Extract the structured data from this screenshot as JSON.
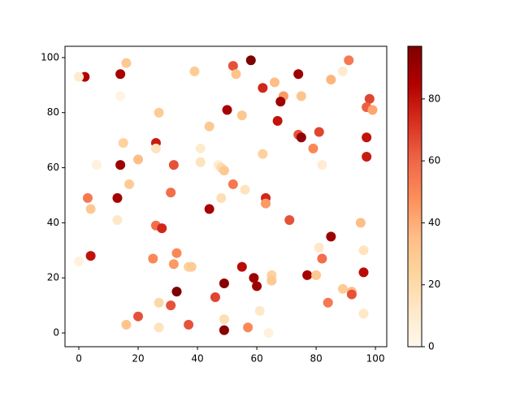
{
  "chart_data": {
    "type": "scatter",
    "colormap": "OrRd",
    "x": [
      2,
      0,
      14,
      16,
      14,
      39,
      52,
      53,
      58,
      62,
      66,
      69,
      68,
      74,
      75,
      85,
      89,
      91,
      98,
      97,
      99,
      50,
      55,
      27,
      44,
      67,
      74,
      75,
      81,
      79,
      97,
      97,
      26,
      26,
      15,
      20,
      6,
      14,
      32,
      41,
      41,
      47,
      48,
      49,
      62,
      82,
      17,
      52,
      56,
      31,
      48,
      63,
      63,
      3,
      13,
      4,
      44,
      13,
      26,
      28,
      71,
      95,
      85,
      4,
      25,
      33,
      32,
      37,
      38,
      0,
      55,
      59,
      60,
      49,
      33,
      65,
      65,
      77,
      80,
      81,
      82,
      96,
      96,
      89,
      92,
      92,
      84,
      96,
      46,
      27,
      31,
      20,
      16,
      27,
      37,
      49,
      49,
      57,
      61,
      64
    ],
    "y": [
      93,
      93,
      94,
      98,
      86,
      95,
      97,
      94,
      99,
      89,
      91,
      86,
      84,
      94,
      86,
      92,
      95,
      99,
      85,
      82,
      81,
      81,
      79,
      80,
      75,
      77,
      72,
      71,
      73,
      67,
      71,
      64,
      69,
      67,
      69,
      63,
      61,
      61,
      61,
      67,
      62,
      61,
      60,
      59,
      65,
      61,
      54,
      54,
      52,
      51,
      49,
      49,
      47,
      49,
      49,
      45,
      45,
      41,
      39,
      38,
      41,
      40,
      35,
      28,
      27,
      29,
      25,
      24,
      24,
      26,
      24,
      20,
      17,
      18,
      15,
      21,
      19,
      21,
      21,
      31,
      27,
      30,
      22,
      16,
      15,
      14,
      11,
      7,
      13,
      11,
      10,
      6,
      3,
      2,
      3,
      5,
      1,
      2,
      8,
      0
    ],
    "color_values": [
      85,
      10,
      88,
      30,
      3,
      28,
      65,
      32,
      97,
      75,
      35,
      45,
      90,
      90,
      32,
      38,
      10,
      55,
      68,
      62,
      42,
      88,
      30,
      28,
      30,
      80,
      65,
      92,
      68,
      50,
      80,
      78,
      78,
      15,
      25,
      35,
      5,
      90,
      65,
      10,
      15,
      8,
      20,
      30,
      25,
      8,
      28,
      55,
      15,
      58,
      18,
      75,
      45,
      55,
      88,
      30,
      88,
      12,
      58,
      75,
      65,
      35,
      90,
      80,
      50,
      50,
      45,
      25,
      28,
      5,
      82,
      90,
      90,
      95,
      97,
      25,
      30,
      88,
      30,
      12,
      58,
      15,
      82,
      28,
      35,
      65,
      55,
      12,
      68,
      22,
      65,
      65,
      32,
      15,
      65,
      18,
      95,
      50,
      12,
      5
    ],
    "xlim": [
      -4.66,
      103.8
    ],
    "ylim": [
      -5,
      104.1
    ],
    "xticks": [
      0,
      20,
      40,
      60,
      80,
      100
    ],
    "yticks": [
      0,
      20,
      40,
      60,
      80,
      100
    ],
    "clim": [
      0,
      97
    ],
    "cticks": [
      0,
      20,
      40,
      60,
      80
    ]
  }
}
